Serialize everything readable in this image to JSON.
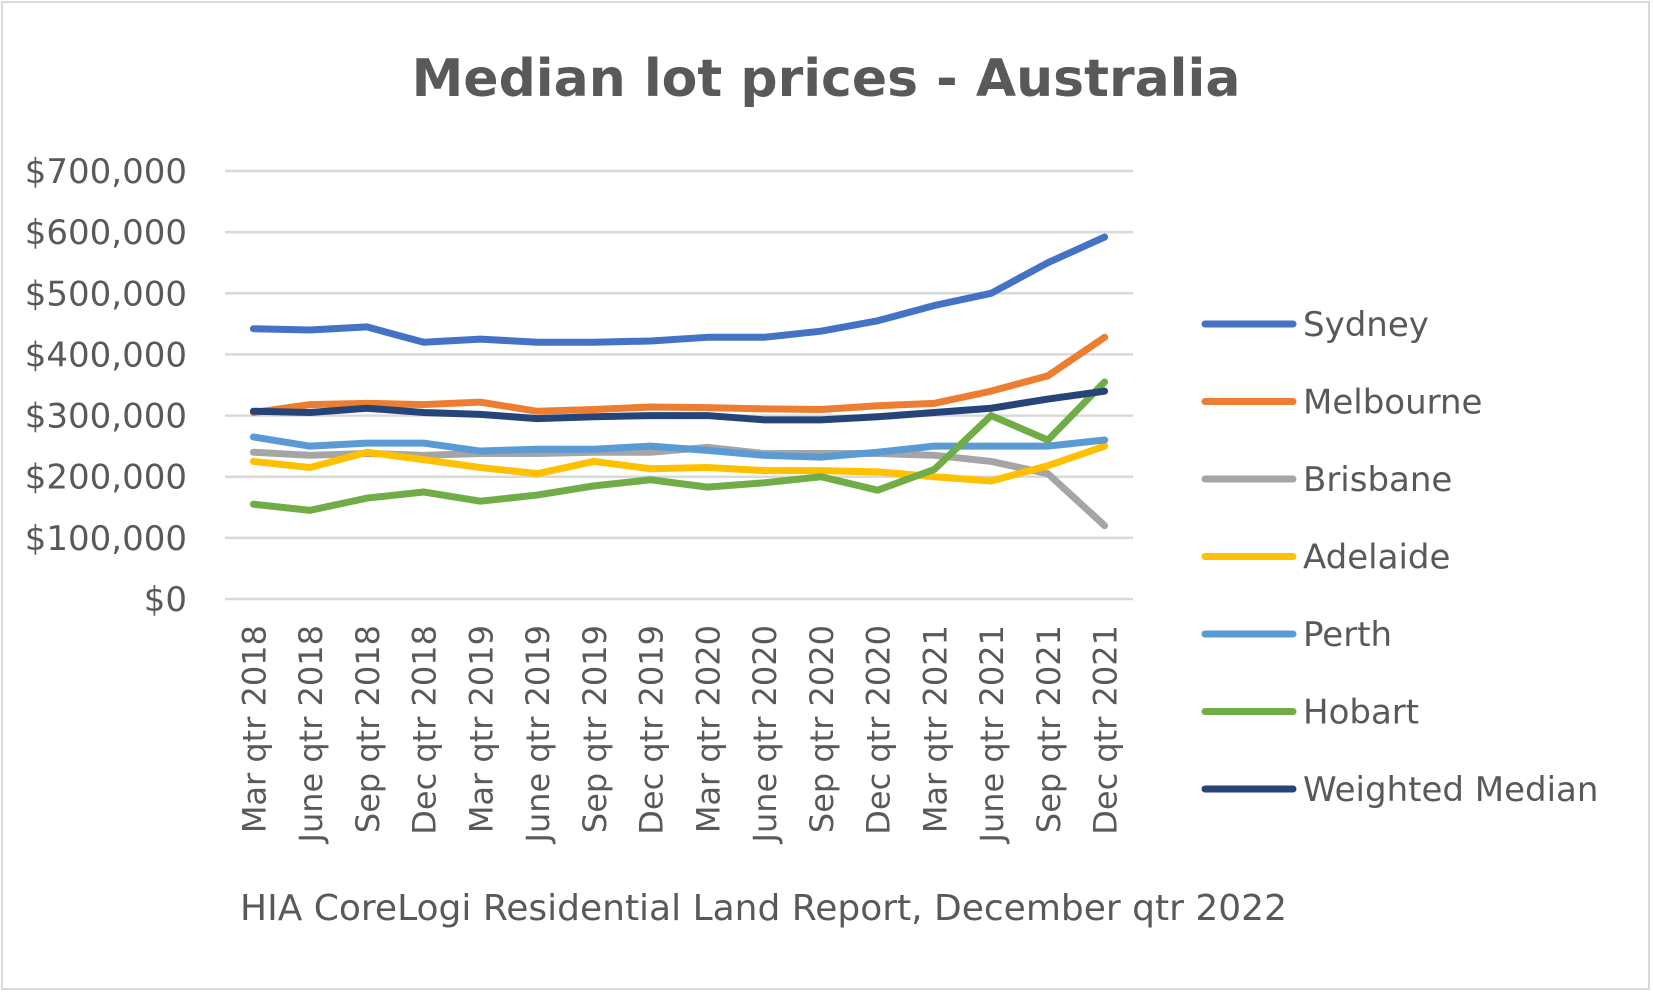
{
  "chart_data": {
    "type": "line",
    "title": "Median lot prices - Australia",
    "source_note": "HIA CoreLogi Residential Land Report, December qtr 2022",
    "ylim": [
      0,
      700000
    ],
    "y_ticks": [
      0,
      100000,
      200000,
      300000,
      400000,
      500000,
      600000,
      700000
    ],
    "y_tick_labels": [
      "$0",
      "$100,000",
      "$200,000",
      "$300,000",
      "$400,000",
      "$500,000",
      "$600,000",
      "$700,000"
    ],
    "grid": true,
    "legend_position": "right",
    "categories": [
      "Mar qtr 2018",
      "June  qtr 2018",
      "Sep qtr 2018",
      "Dec qtr 2018",
      "Mar qtr 2019",
      "June  qtr 2019",
      "Sep qtr 2019",
      "Dec qtr 2019",
      "Mar qtr 2020",
      "June  qtr 2020",
      "Sep qtr 2020",
      "Dec qtr 2020",
      "Mar qtr 2021",
      "June  qtr 2021",
      "Sep qtr 2021",
      "Dec qtr 2021"
    ],
    "series": [
      {
        "name": "Sydney",
        "color": "#4472c4",
        "values": [
          442000,
          440000,
          445000,
          420000,
          425000,
          420000,
          420000,
          422000,
          428000,
          428000,
          438000,
          455000,
          480000,
          500000,
          550000,
          592000
        ]
      },
      {
        "name": "Melbourne",
        "color": "#ed7d31",
        "values": [
          305000,
          318000,
          320000,
          318000,
          322000,
          307000,
          310000,
          314000,
          313000,
          311000,
          310000,
          316000,
          320000,
          340000,
          365000,
          428000
        ]
      },
      {
        "name": "Brisbane",
        "color": "#a5a5a5",
        "values": [
          240000,
          235000,
          238000,
          235000,
          238000,
          238000,
          240000,
          240000,
          248000,
          238000,
          238000,
          238000,
          235000,
          225000,
          205000,
          120000
        ]
      },
      {
        "name": "Adelaide",
        "color": "#ffc000",
        "values": [
          225000,
          215000,
          240000,
          228000,
          215000,
          205000,
          225000,
          213000,
          215000,
          210000,
          210000,
          208000,
          200000,
          193000,
          218000,
          250000
        ]
      },
      {
        "name": "Perth",
        "color": "#5b9bd5",
        "values": [
          265000,
          250000,
          255000,
          255000,
          242000,
          245000,
          245000,
          250000,
          243000,
          235000,
          232000,
          240000,
          250000,
          250000,
          250000,
          260000
        ]
      },
      {
        "name": "Hobart",
        "color": "#70ad47",
        "values": [
          155000,
          145000,
          165000,
          175000,
          160000,
          170000,
          185000,
          195000,
          183000,
          190000,
          200000,
          178000,
          212000,
          300000,
          260000,
          355000
        ]
      },
      {
        "name": "Weighted Median",
        "color": "#264478",
        "values": [
          307000,
          305000,
          312000,
          305000,
          302000,
          295000,
          298000,
          300000,
          300000,
          293000,
          293000,
          298000,
          305000,
          312000,
          327000,
          340000
        ]
      }
    ]
  }
}
